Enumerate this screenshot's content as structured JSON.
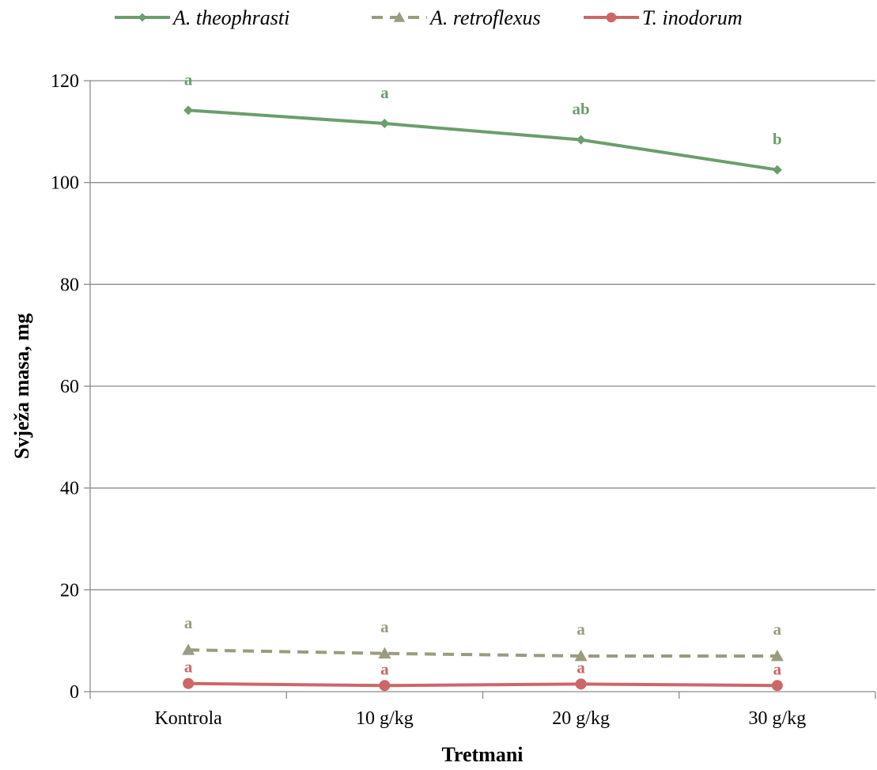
{
  "chart_data": {
    "type": "line",
    "categories": [
      "Kontrola",
      "10 g/kg",
      "20 g/kg",
      "30 g/kg"
    ],
    "series": [
      {
        "name": "A. theophrasti",
        "values": [
          114.2,
          111.6,
          108.4,
          102.5
        ],
        "color": "#6b9e6b",
        "marker": "diamond",
        "dash": false,
        "labels": [
          "a",
          "a",
          "ab",
          "b"
        ]
      },
      {
        "name": "A. retroflexus",
        "values": [
          8.2,
          7.5,
          7.0,
          7.0
        ],
        "color": "#9b9b7e",
        "marker": "triangle",
        "dash": true,
        "labels": [
          "a",
          "a",
          "a",
          "a"
        ]
      },
      {
        "name": "T. inodorum",
        "values": [
          1.6,
          1.2,
          1.5,
          1.2
        ],
        "color": "#cd6767",
        "marker": "circle",
        "dash": false,
        "labels": [
          "a",
          "a",
          "a",
          "a"
        ]
      }
    ],
    "xlabel": "Tretmani",
    "ylabel": "Svježa masa, mg",
    "ylim": [
      0,
      120
    ],
    "yticks": [
      0,
      20,
      40,
      60,
      80,
      100,
      120
    ],
    "grid": true,
    "legend_position": "top"
  }
}
